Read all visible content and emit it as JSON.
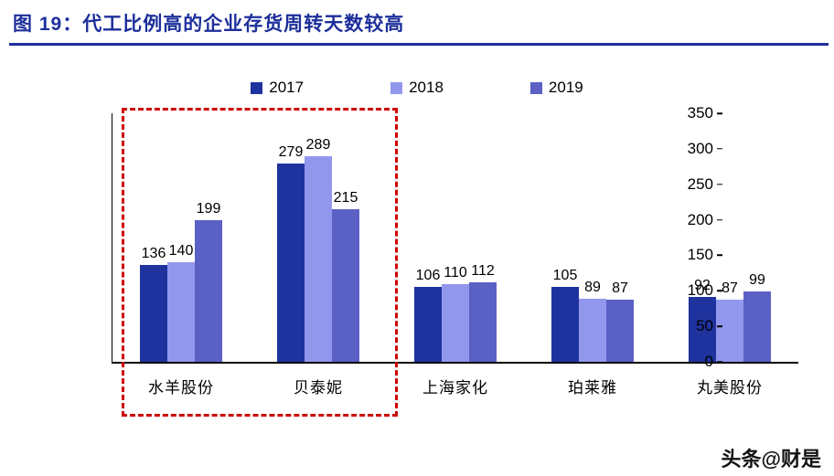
{
  "header": {
    "title": "图 19：代工比例高的企业存货周转天数较高",
    "accent_color": "#1d2f9b"
  },
  "chart_data": {
    "type": "bar",
    "title": "",
    "xlabel": "",
    "ylabel": "",
    "categories": [
      "水羊股份",
      "贝泰妮",
      "上海家化",
      "珀莱雅",
      "丸美股份"
    ],
    "series": [
      {
        "name": "2017",
        "color": "#1e339e",
        "values": [
          136,
          279,
          106,
          105,
          92
        ]
      },
      {
        "name": "2018",
        "color": "#9297ee",
        "values": [
          140,
          289,
          110,
          89,
          87
        ]
      },
      {
        "name": "2019",
        "color": "#5b60c4",
        "values": [
          199,
          215,
          112,
          87,
          99
        ]
      }
    ],
    "ylim": [
      0,
      350
    ],
    "ytick_step": 50,
    "grid": false,
    "legend_position": "top",
    "annotation": {
      "type": "red-dashed-box",
      "color": "#cf0000",
      "highlighted_categories": [
        "水羊股份",
        "贝泰妮"
      ]
    }
  },
  "watermark": "头条@财是"
}
